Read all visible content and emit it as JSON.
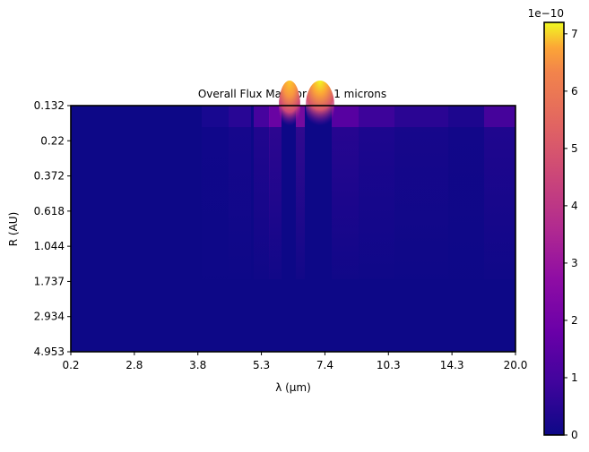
{
  "chart_data": {
    "type": "heatmap",
    "title": "Overall Flux Map for r=0.1 microns",
    "xlabel": "λ (μm)",
    "ylabel": "R (AU)",
    "x_tick_labels": [
      "0.2",
      "2.8",
      "3.8",
      "5.3",
      "7.4",
      "10.3",
      "14.3",
      "20.0"
    ],
    "y_tick_labels": [
      "0.132",
      "0.22",
      "0.372",
      "0.618",
      "1.044",
      "1.737",
      "2.934",
      "4.953"
    ],
    "colormap": "plasma",
    "colorbar": {
      "min": 0,
      "max": 7.2,
      "offset_label": "1e−10",
      "tick_labels": [
        "0",
        "1",
        "2",
        "3",
        "4",
        "5",
        "6",
        "7"
      ],
      "tick_values": [
        0,
        1,
        2,
        3,
        4,
        5,
        6,
        7
      ]
    },
    "description_values": {
      "hotspot_lambda_um": [
        5.9,
        6.4
      ],
      "hotspot_R_AU": 0.132,
      "peak_flux": 7.2
    }
  }
}
